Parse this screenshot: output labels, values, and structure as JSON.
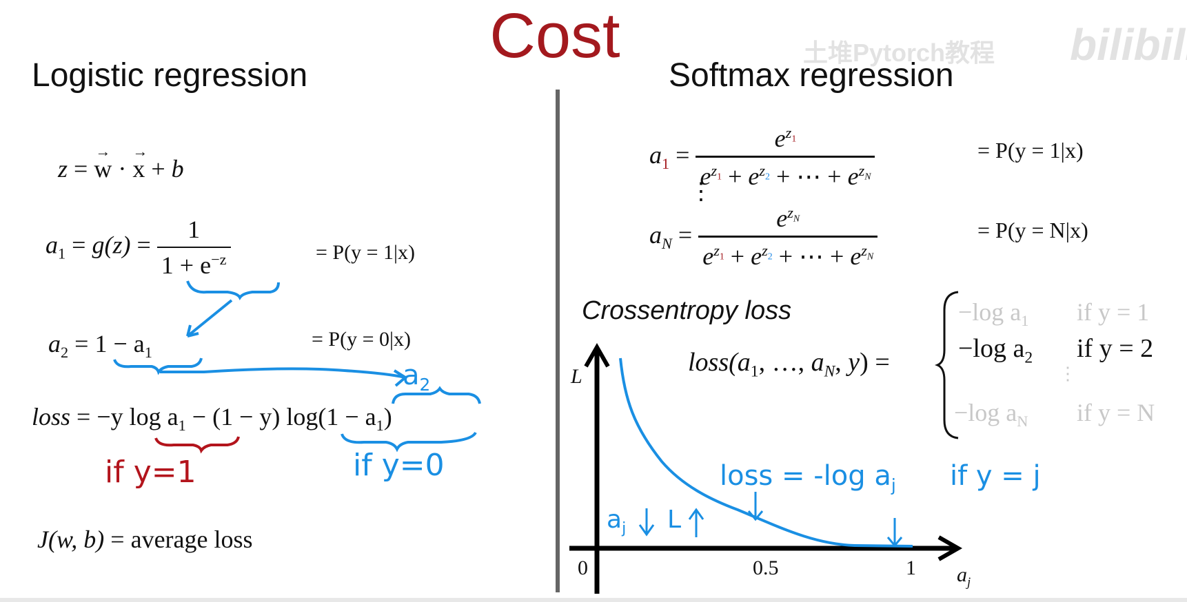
{
  "title": "Cost",
  "watermark": {
    "channel": "土堆Pytorch教程",
    "brand": "bilibili"
  },
  "left": {
    "heading": "Logistic regression",
    "eq_z": {
      "lhs": "z",
      "w": "w",
      "x": "x",
      "b": "b"
    },
    "eq_a1": {
      "lhs": "a",
      "sub": "1",
      "g": "g(z)",
      "num": "1",
      "den": "1 + e",
      "exp": "−z",
      "prob": "= P(y = 1|x)"
    },
    "eq_a2": {
      "lhs": "a",
      "sub": "2",
      "rhs": "1 − a",
      "rhs_sub": "1",
      "prob": "= P(y = 0|x)"
    },
    "eq_loss": {
      "lhs": "loss",
      "expr": "= −y log a",
      "sub1": "1",
      "mid": " − (1 − y) log(1 − a",
      "sub2": "1",
      "end": ")"
    },
    "annot_a2": "a",
    "annot_a2_sub": "2",
    "annot_if1": "if y=1",
    "annot_if0": "if y=0",
    "eq_J": {
      "lhs": "J(w, b)",
      "rhs": "= average loss"
    }
  },
  "right": {
    "heading": "Softmax regression",
    "eq_a1": {
      "lhs": "a",
      "sub": "1",
      "prob": "= P(y = 1|x)"
    },
    "eq_aN": {
      "lhs": "a",
      "sub": "N",
      "prob": "= P(y = N|x)"
    },
    "vdots": "⋮",
    "ce_label": "Crossentropy loss",
    "loss_lhs": "loss(a",
    "cases": [
      {
        "expr": "−log a",
        "sub": "1",
        "cond": "if y = 1",
        "active": false
      },
      {
        "expr": "−log a",
        "sub": "2",
        "cond": "if y = 2",
        "active": true
      },
      {
        "expr": "−log a",
        "sub": "N",
        "cond": "if y = N",
        "active": false
      }
    ],
    "graph": {
      "y_label": "L",
      "x_label": "a",
      "x_label_sub": "j",
      "ticks": [
        "0",
        "0.5",
        "1"
      ],
      "annot_loss": "loss = -log a",
      "annot_loss_sub": "j",
      "annot_loss_cond": "if y = j",
      "annot_aj": "a",
      "annot_aj_sub": "j",
      "annot_L": "L"
    }
  }
}
